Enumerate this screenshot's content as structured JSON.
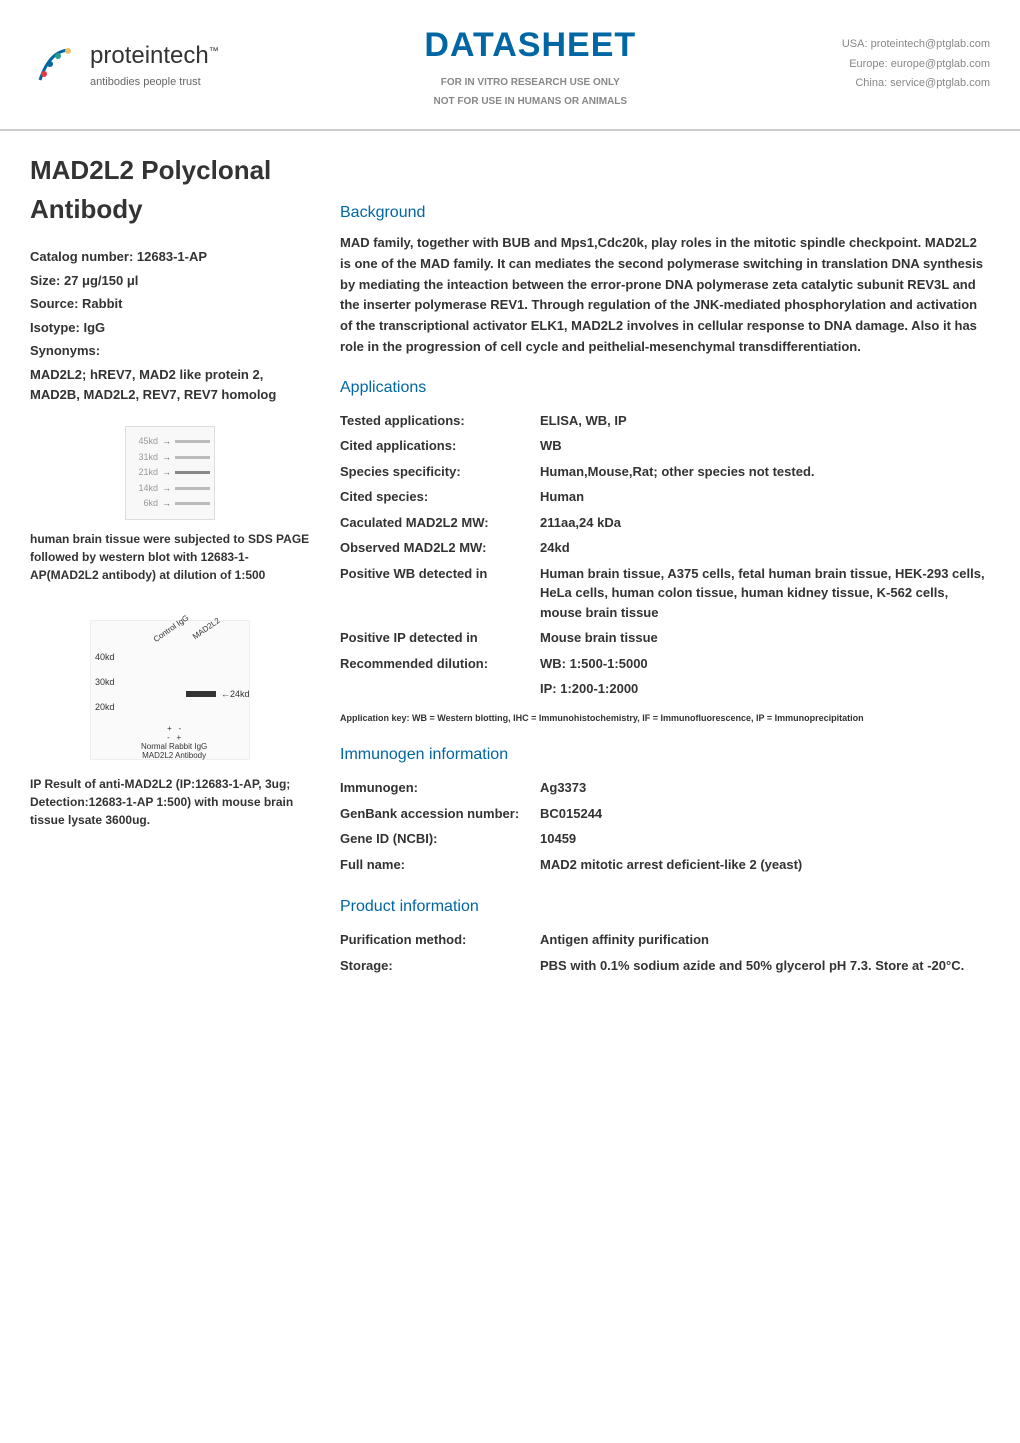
{
  "header": {
    "brand_name": "proteintech",
    "brand_tm": "™",
    "tagline": "antibodies people trust",
    "datasheet_word": "DATASHEET",
    "disclaimer_line1": "FOR IN VITRO RESEARCH USE ONLY",
    "disclaimer_line2": "NOT FOR USE IN HUMANS OR ANIMALS",
    "contacts": {
      "usa": "USA: proteintech@ptglab.com",
      "europe": "Europe: europe@ptglab.com",
      "china": "China: service@ptglab.com"
    }
  },
  "product_title": "MAD2L2 Polyclonal Antibody",
  "meta": {
    "catalog_label": "Catalog number:",
    "catalog_value": "12683-1-AP",
    "size_label": "Size:",
    "size_value": "27 μg/150 μl",
    "source_label": "Source:",
    "source_value": "Rabbit",
    "isotype_label": "Isotype:",
    "isotype_value": "IgG",
    "synonyms_label": "Synonyms:",
    "synonyms_text": "MAD2L2; hREV7, MAD2 like protein 2, MAD2B, MAD2L2, REV7, REV7 homolog"
  },
  "gel1": {
    "bands": [
      "45kd",
      "31kd",
      "21kd",
      "14kd",
      "6kd"
    ],
    "caption": "human brain tissue were subjected to SDS PAGE followed by western blot with 12683-1-AP(MAD2L2 antibody) at dilution of 1:500"
  },
  "gel2": {
    "y_labels": [
      "40kd",
      "30kd",
      "20kd"
    ],
    "lane_labels": [
      "Control IgG",
      "MAD2L2"
    ],
    "arrow_label": "24kd",
    "legend_signs": "+   -\n-   +",
    "legend_text": "Normal Rabbit IgG\nMAD2L2 Antibody",
    "caption": "IP Result of anti-MAD2L2 (IP:12683-1-AP, 3ug; Detection:12683-1-AP 1:500) with mouse brain tissue lysate 3600ug."
  },
  "sections": {
    "background_heading": "Background",
    "background_text": "MAD family, together with BUB and Mps1,Cdc20k, play roles in the mitotic spindle checkpoint. MAD2L2 is one of the MAD family. It can mediates the second polymerase switching in translation DNA synthesis by mediating the inteaction between the error-prone DNA polymerase zeta catalytic subunit REV3L and the inserter polymerase REV1. Through regulation of the JNK-mediated phosphorylation and activation of the transcriptional activator ELK1, MAD2L2 involves in cellular response to DNA damage. Also it has role in the progression of cell cycle and peithelial-mesenchymal transdifferentiation.",
    "applications_heading": "Applications",
    "applications": {
      "rows": [
        {
          "label": "Tested applications:",
          "value": "ELISA, WB, IP"
        },
        {
          "label": "Cited applications:",
          "value": "WB"
        },
        {
          "label": "Species specificity:",
          "value": "Human,Mouse,Rat; other species not tested."
        },
        {
          "label": "Cited species:",
          "value": "Human"
        },
        {
          "label": "Caculated MAD2L2 MW:",
          "value": "211aa,24 kDa"
        },
        {
          "label": "Observed MAD2L2 MW:",
          "value": "24kd"
        },
        {
          "label": "Positive WB detected in",
          "value": "Human brain tissue, A375 cells, fetal human brain tissue, HEK-293 cells, HeLa cells, human colon tissue, human kidney tissue, K-562 cells, mouse brain tissue"
        },
        {
          "label": "Positive IP detected in",
          "value": "Mouse brain tissue"
        },
        {
          "label": "Recommended dilution:",
          "value": "WB: 1:500-1:5000"
        },
        {
          "label": "",
          "value": "IP: 1:200-1:2000"
        }
      ],
      "key_text": "Application key: WB = Western blotting, IHC = Immunohistochemistry, IF = Immunofluorescence, IP = Immunoprecipitation"
    },
    "immunogen_heading": "Immunogen information",
    "immunogen": {
      "rows": [
        {
          "label": "Immunogen:",
          "value": "Ag3373"
        },
        {
          "label": "GenBank accession number:",
          "value": "BC015244"
        },
        {
          "label": "Gene ID (NCBI):",
          "value": "10459"
        },
        {
          "label": "Full name:",
          "value": "MAD2 mitotic arrest deficient-like 2 (yeast)"
        }
      ]
    },
    "product_info_heading": "Product information",
    "product_info": {
      "rows": [
        {
          "label": "Purification method:",
          "value": "Antigen affinity purification"
        },
        {
          "label": "Storage:",
          "value": "PBS with 0.1% sodium azide and 50% glycerol pH 7.3. Store at -20°C."
        }
      ]
    }
  },
  "colors": {
    "heading_blue": "#0066a4",
    "text_dark": "#333333",
    "border_grey": "#cccccc",
    "muted": "#888888"
  }
}
